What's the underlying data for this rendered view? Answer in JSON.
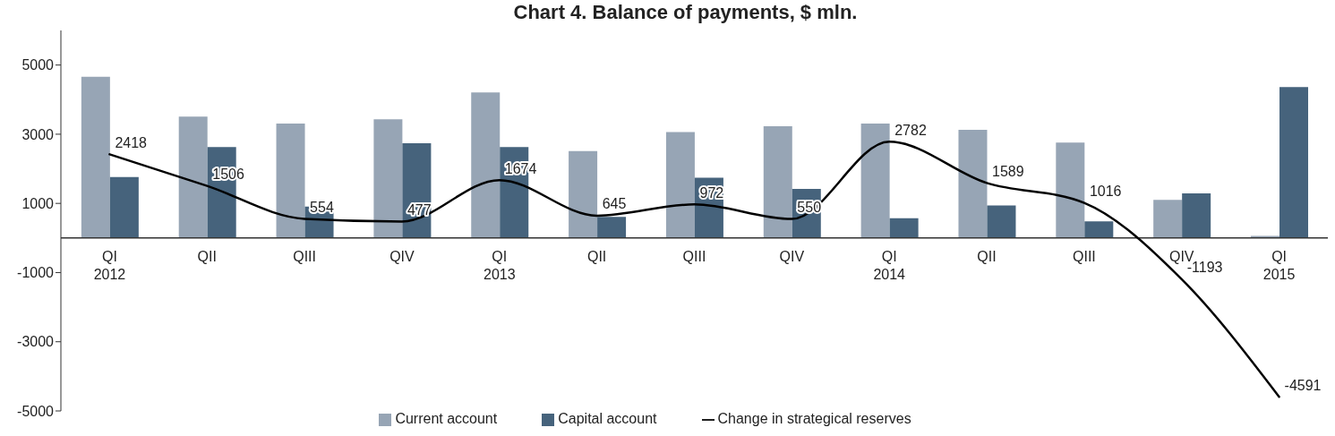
{
  "chart_data": {
    "type": "bar",
    "title": "Chart 4. Balance of payments, $ mln.",
    "categories": [
      "QI 2012",
      "QII",
      "QIII",
      "QIV",
      "QI 2013",
      "QII",
      "QIII",
      "QIV",
      "QI 2014",
      "QII",
      "QIII",
      "QIV",
      "QI 2015"
    ],
    "series": [
      {
        "name": "Current account",
        "color": "#97a5b5",
        "values": [
          4660,
          3510,
          3310,
          3430,
          4210,
          2510,
          3060,
          3230,
          3310,
          3130,
          2760,
          1100,
          60
        ]
      },
      {
        "name": "Capital account",
        "color": "#46637c",
        "values": [
          1760,
          2630,
          910,
          2740,
          2630,
          610,
          1740,
          1420,
          570,
          940,
          480,
          1290,
          4360
        ]
      },
      {
        "name": "Change in strategical reserves",
        "type": "line",
        "color": "#000000",
        "line_style": "solid",
        "values": [
          2418,
          1506,
          554,
          477,
          1674,
          645,
          972,
          550,
          2782,
          1589,
          1016,
          -1193,
          -4591
        ],
        "value_labels": [
          "2418",
          "1506",
          "554",
          "477",
          "1674",
          "645",
          "972",
          "550",
          "2782",
          "1589",
          "1016",
          "-1193",
          "-4591"
        ]
      }
    ],
    "ylim": [
      -5000,
      6000
    ],
    "yticks": [
      -5000,
      -3000,
      -1000,
      1000,
      3000,
      5000
    ],
    "legend": "bottom"
  }
}
